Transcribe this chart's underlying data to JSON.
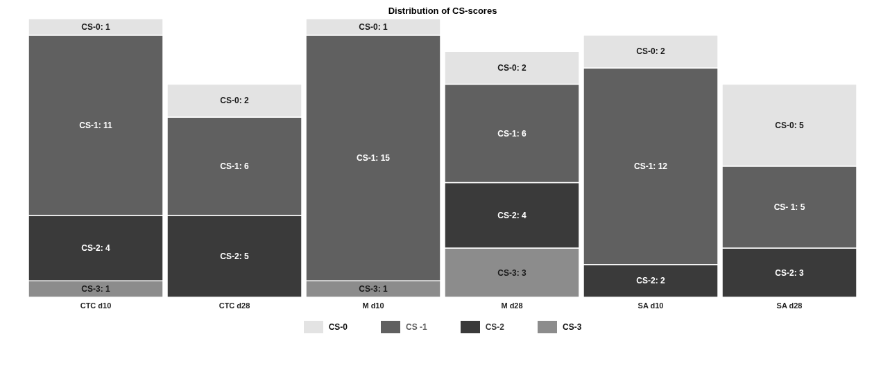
{
  "chart_data": {
    "type": "bar",
    "title": "Distribution of CS-scores",
    "stacked": true,
    "legend": "bottom",
    "ylim": [
      0,
      17
    ],
    "categories": [
      "CTC d10",
      "CTC d28",
      "M d10",
      "M d28",
      "SA d10",
      "SA d28"
    ],
    "series": [
      {
        "name": "CS-3",
        "color": "#8c8c8c",
        "values": [
          1,
          null,
          1,
          3,
          null,
          null
        ],
        "value_labels": [
          "CS-3: 1",
          null,
          "CS-3: 1",
          "CS-3: 3",
          null,
          null
        ]
      },
      {
        "name": "CS-2",
        "color": "#3a3a3a",
        "values": [
          4,
          5,
          null,
          4,
          2,
          3
        ],
        "value_labels": [
          "CS-2: 4",
          "CS-2: 5",
          null,
          "CS-2: 4",
          "CS-2: 2",
          "CS-2: 3"
        ]
      },
      {
        "name": "CS -1",
        "color": "#606060",
        "values": [
          11,
          6,
          15,
          6,
          12,
          5
        ],
        "value_labels": [
          "CS-1: 11",
          "CS-1: 6",
          "CS-1: 15",
          "CS-1: 6",
          "CS-1: 12",
          "CS- 1: 5"
        ]
      },
      {
        "name": "CS-0",
        "color": "#e3e3e3",
        "values": [
          1,
          2,
          1,
          2,
          2,
          5
        ],
        "value_labels": [
          "CS-0: 1",
          "CS-0: 2",
          "CS-0: 1",
          "CS-0: 2",
          "CS-0: 2",
          "CS-0: 5"
        ]
      }
    ]
  }
}
